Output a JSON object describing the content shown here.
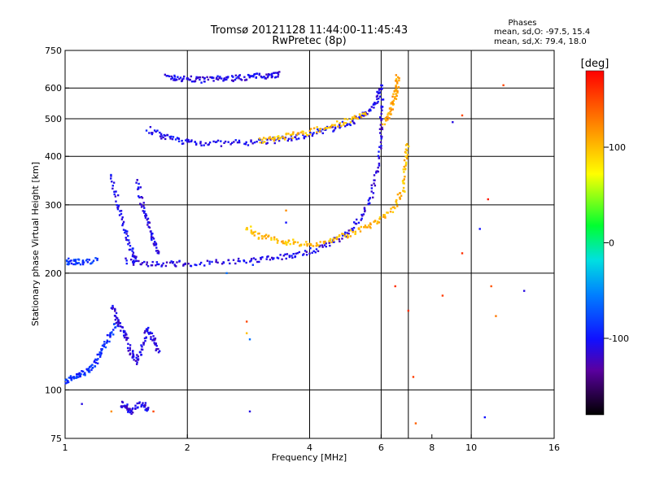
{
  "title": "Tromsø 20121128 11:44:00-11:45:43",
  "subtitle": "RwPretec (8p)",
  "phases_box": {
    "heading": "Phases",
    "line_o": "mean, sd,O:  -97.5, 15.4",
    "line_x": "mean, sd,X:  79.4, 18.0"
  },
  "colorbar": {
    "label": "[deg]",
    "range": [
      -180,
      180
    ],
    "ticks": [
      100,
      0,
      -100
    ],
    "tick_labels": [
      "100",
      "0",
      "-100"
    ]
  },
  "colors": {
    "frame": "#000000",
    "background": "#ffffff"
  },
  "chart_data": {
    "type": "scatter",
    "xlabel": "Frequency [MHz]",
    "ylabel": "Stationary phase Virtual Height [km]",
    "x_scale": "log",
    "y_scale": "log",
    "xlim": [
      1,
      16
    ],
    "ylim": [
      75,
      750
    ],
    "x_ticks": [
      1,
      2,
      4,
      6,
      8,
      10,
      16
    ],
    "x_tick_labels": [
      "1",
      "2",
      "4",
      "6",
      "8",
      "10",
      "16"
    ],
    "y_ticks": [
      75,
      100,
      200,
      300,
      400,
      500,
      600,
      750
    ],
    "y_tick_labels": [
      "75",
      "100",
      "200",
      "300",
      "400",
      "500",
      "600",
      "750"
    ],
    "x_gridlines": [
      2,
      4,
      6,
      7,
      10
    ],
    "y_gridlines": [
      100,
      200,
      300,
      400,
      500,
      600
    ],
    "grid": true,
    "color_variable": "phase [deg]",
    "traces": [
      {
        "points": [
          [
            1.78,
            640
          ],
          [
            1.9,
            635
          ],
          [
            2.05,
            632
          ],
          [
            2.2,
            630
          ],
          [
            2.4,
            633
          ],
          [
            2.6,
            636
          ],
          [
            2.8,
            640
          ],
          [
            3.0,
            644
          ],
          [
            3.2,
            648
          ],
          [
            3.35,
            650
          ]
        ],
        "phase": -110
      },
      {
        "points": [
          [
            1.6,
            470
          ],
          [
            1.75,
            450
          ],
          [
            1.9,
            440
          ],
          [
            2.1,
            434
          ],
          [
            2.4,
            432
          ],
          [
            2.8,
            434
          ],
          [
            3.2,
            438
          ],
          [
            3.6,
            446
          ],
          [
            4.0,
            456
          ],
          [
            4.5,
            470
          ],
          [
            5.0,
            488
          ],
          [
            5.4,
            508
          ],
          [
            5.7,
            535
          ],
          [
            5.9,
            570
          ],
          [
            6.0,
            610
          ]
        ],
        "phase": -105
      },
      {
        "points": [
          [
            3.0,
            440
          ],
          [
            3.3,
            445
          ],
          [
            3.6,
            452
          ],
          [
            4.0,
            462
          ],
          [
            4.5,
            478
          ],
          [
            5.0,
            495
          ],
          [
            5.5,
            512
          ]
        ],
        "phase": 100
      },
      {
        "points": [
          [
            6.1,
            490
          ],
          [
            6.3,
            520
          ],
          [
            6.45,
            560
          ],
          [
            6.55,
            600
          ],
          [
            6.6,
            640
          ]
        ],
        "phase": 110
      },
      {
        "points": [
          [
            1.4,
            215
          ],
          [
            1.6,
            212
          ],
          [
            1.8,
            211
          ],
          [
            2.0,
            212
          ],
          [
            2.4,
            213
          ],
          [
            2.8,
            215
          ],
          [
            3.2,
            218
          ],
          [
            3.6,
            222
          ],
          [
            4.0,
            228
          ],
          [
            4.5,
            238
          ],
          [
            5.0,
            255
          ],
          [
            5.4,
            280
          ],
          [
            5.7,
            320
          ],
          [
            5.9,
            380
          ],
          [
            6.0,
            470
          ],
          [
            6.02,
            560
          ]
        ],
        "phase": -110
      },
      {
        "points": [
          [
            2.8,
            262
          ],
          [
            3.0,
            250
          ],
          [
            3.3,
            243
          ],
          [
            3.6,
            240
          ],
          [
            4.0,
            238
          ]
        ],
        "phase": 100
      },
      {
        "points": [
          [
            4.0,
            236
          ],
          [
            4.5,
            243
          ],
          [
            5.0,
            252
          ],
          [
            5.5,
            262
          ],
          [
            6.0,
            275
          ],
          [
            6.5,
            298
          ],
          [
            6.8,
            330
          ],
          [
            6.9,
            380
          ],
          [
            6.95,
            430
          ]
        ],
        "phase": 102
      },
      {
        "points": [
          [
            1.3,
            360
          ],
          [
            1.35,
            300
          ],
          [
            1.4,
            260
          ],
          [
            1.45,
            230
          ],
          [
            1.5,
            215
          ]
        ],
        "phase": -105
      },
      {
        "points": [
          [
            1.5,
            350
          ],
          [
            1.55,
            300
          ],
          [
            1.6,
            270
          ],
          [
            1.65,
            245
          ],
          [
            1.7,
            225
          ]
        ],
        "phase": -110
      },
      {
        "points": [
          [
            1.0,
            215
          ],
          [
            1.05,
            213
          ],
          [
            1.1,
            214
          ],
          [
            1.2,
            216
          ]
        ],
        "phase": -85
      },
      {
        "points": [
          [
            1.0,
            105
          ],
          [
            1.05,
            108
          ],
          [
            1.1,
            110
          ],
          [
            1.15,
            113
          ],
          [
            1.2,
            120
          ],
          [
            1.25,
            130
          ],
          [
            1.3,
            140
          ],
          [
            1.35,
            150
          ]
        ],
        "phase": -88
      },
      {
        "points": [
          [
            1.3,
            165
          ],
          [
            1.35,
            150
          ],
          [
            1.4,
            140
          ],
          [
            1.45,
            125
          ],
          [
            1.5,
            118
          ],
          [
            1.55,
            130
          ],
          [
            1.6,
            145
          ],
          [
            1.65,
            135
          ],
          [
            1.7,
            125
          ]
        ],
        "phase": -112
      },
      {
        "points": [
          [
            1.38,
            92
          ],
          [
            1.42,
            90
          ],
          [
            1.45,
            88
          ],
          [
            1.55,
            92
          ],
          [
            1.6,
            89
          ]
        ],
        "phase": -110
      }
    ],
    "sparse_points": [
      [
        2.85,
        88,
        -110
      ],
      [
        2.9,
        210,
        -85
      ],
      [
        2.5,
        200,
        -60
      ],
      [
        2.8,
        150,
        150
      ],
      [
        2.8,
        140,
        100
      ],
      [
        2.85,
        135,
        -60
      ],
      [
        3.5,
        290,
        120
      ],
      [
        3.5,
        270,
        -100
      ],
      [
        6.5,
        185,
        160
      ],
      [
        7.0,
        160,
        160
      ],
      [
        7.2,
        108,
        155
      ],
      [
        7.3,
        82,
        140
      ],
      [
        8.5,
        175,
        155
      ],
      [
        9.0,
        490,
        -110
      ],
      [
        9.5,
        510,
        150
      ],
      [
        9.5,
        225,
        160
      ],
      [
        10.5,
        260,
        -100
      ],
      [
        11.2,
        185,
        145
      ],
      [
        11.0,
        310,
        170
      ],
      [
        11.5,
        155,
        130
      ],
      [
        12.0,
        610,
        150
      ],
      [
        13.5,
        180,
        -110
      ],
      [
        10.8,
        85,
        -100
      ],
      [
        1.1,
        92,
        -110
      ],
      [
        1.3,
        88,
        120
      ],
      [
        1.65,
        88,
        150
      ]
    ]
  }
}
